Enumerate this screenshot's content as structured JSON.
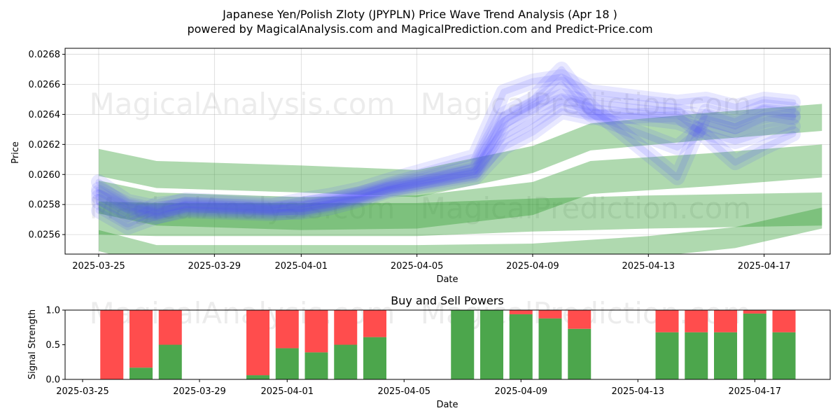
{
  "title_line1": "Japanese Yen/Polish Zloty (JPYPLN) Price Wave Trend Analysis (Apr 18 )",
  "title_line2": "powered by MagicalAnalysis.com and MagicalPrediction.com and Predict-Price.com",
  "watermarks": [
    "MagicalAnalysis.com",
    "MagicalPrediction.com"
  ],
  "chart_data": [
    {
      "type": "area",
      "xlabel": "Date",
      "ylabel": "Price",
      "x_ticks": [
        "2025-03-25",
        "2025-03-29",
        "2025-04-01",
        "2025-04-05",
        "2025-04-09",
        "2025-04-13",
        "2025-04-17"
      ],
      "y_ticks": [
        "0.0256",
        "0.0258",
        "0.0260",
        "0.0262",
        "0.0264",
        "0.0266",
        "0.0268"
      ],
      "ylim": [
        0.02547,
        0.02684
      ],
      "grid": true,
      "colors": {
        "blue_bands": "#4d4dff",
        "green_bands": "#2e9a2e"
      },
      "blue_bands": [
        {
          "x": [
            "2025-03-25",
            "2025-03-26",
            "2025-03-27",
            "2025-03-28",
            "2025-03-31",
            "2025-04-01",
            "2025-04-02",
            "2025-04-03",
            "2025-04-04",
            "2025-04-07",
            "2025-04-08",
            "2025-04-09",
            "2025-04-10",
            "2025-04-11",
            "2025-04-14",
            "2025-04-15",
            "2025-04-16",
            "2025-04-17",
            "2025-04-18"
          ],
          "y": [
            0.02588,
            0.02578,
            0.02574,
            0.02578,
            0.02576,
            0.02577,
            0.02581,
            0.02585,
            0.0259,
            0.02602,
            0.02632,
            0.02645,
            0.02652,
            0.02648,
            0.02642,
            0.02638,
            0.02632,
            0.02641,
            0.02638
          ]
        },
        {
          "x": [
            "2025-03-25",
            "2025-03-26",
            "2025-03-27",
            "2025-03-28",
            "2025-03-31",
            "2025-04-01",
            "2025-04-02",
            "2025-04-03",
            "2025-04-04",
            "2025-04-07",
            "2025-04-08",
            "2025-04-09",
            "2025-04-10",
            "2025-04-11",
            "2025-04-14",
            "2025-04-15",
            "2025-04-16",
            "2025-04-17",
            "2025-04-18"
          ],
          "y": [
            0.02582,
            0.0257,
            0.0258,
            0.02582,
            0.02579,
            0.02583,
            0.02586,
            0.0259,
            0.02596,
            0.02612,
            0.02655,
            0.02662,
            0.02665,
            0.02655,
            0.02648,
            0.0265,
            0.02645,
            0.0265,
            0.02648
          ]
        },
        {
          "x": [
            "2025-03-25",
            "2025-03-26",
            "2025-03-27",
            "2025-03-28",
            "2025-03-31",
            "2025-04-01",
            "2025-04-02",
            "2025-04-03",
            "2025-04-04",
            "2025-04-07",
            "2025-04-08",
            "2025-04-09",
            "2025-04-10",
            "2025-04-11",
            "2025-04-14",
            "2025-04-15",
            "2025-04-16",
            "2025-04-17",
            "2025-04-18"
          ],
          "y": [
            0.02576,
            0.02565,
            0.02572,
            0.02576,
            0.02574,
            0.02576,
            0.0258,
            0.02584,
            0.0259,
            0.026,
            0.02625,
            0.02636,
            0.02648,
            0.02642,
            0.02635,
            0.02628,
            0.02622,
            0.02628,
            0.02632
          ]
        },
        {
          "x": [
            "2025-03-25",
            "2025-03-26",
            "2025-03-27",
            "2025-03-28",
            "2025-03-31",
            "2025-04-01",
            "2025-04-02",
            "2025-04-03",
            "2025-04-04",
            "2025-04-07",
            "2025-04-08",
            "2025-04-09",
            "2025-04-10",
            "2025-04-11",
            "2025-04-14",
            "2025-04-15",
            "2025-04-16",
            "2025-04-17",
            "2025-04-18"
          ],
          "y": [
            0.02595,
            0.02582,
            0.02578,
            0.02583,
            0.0258,
            0.0258,
            0.02583,
            0.02587,
            0.02592,
            0.02605,
            0.0264,
            0.0265,
            0.0267,
            0.02645,
            0.02598,
            0.02642,
            0.02637,
            0.02645,
            0.02643
          ]
        },
        {
          "x": [
            "2025-03-25",
            "2025-03-26",
            "2025-03-27",
            "2025-03-28",
            "2025-03-31",
            "2025-04-01",
            "2025-04-02",
            "2025-04-03",
            "2025-04-04",
            "2025-04-07",
            "2025-04-08",
            "2025-04-09",
            "2025-04-10",
            "2025-04-11",
            "2025-04-14",
            "2025-04-15",
            "2025-04-16",
            "2025-04-17",
            "2025-04-18"
          ],
          "y": [
            0.02585,
            0.02576,
            0.02572,
            0.02577,
            0.02575,
            0.02575,
            0.02578,
            0.02583,
            0.02589,
            0.02598,
            0.02618,
            0.02628,
            0.02642,
            0.02638,
            0.0264,
            0.02625,
            0.02608,
            0.02618,
            0.02627
          ]
        },
        {
          "x": [
            "2025-03-25",
            "2025-03-26",
            "2025-03-27",
            "2025-03-28",
            "2025-03-31",
            "2025-04-01",
            "2025-04-02",
            "2025-04-03",
            "2025-04-04",
            "2025-04-07",
            "2025-04-08",
            "2025-04-09",
            "2025-04-10",
            "2025-04-11",
            "2025-04-14",
            "2025-04-15",
            "2025-04-16",
            "2025-04-17",
            "2025-04-18"
          ],
          "y": [
            0.0259,
            0.0258,
            0.02576,
            0.0258,
            0.02578,
            0.02578,
            0.02582,
            0.02586,
            0.02591,
            0.02603,
            0.02636,
            0.02646,
            0.0266,
            0.0264,
            0.02618,
            0.02634,
            0.02629,
            0.02636,
            0.02639
          ]
        }
      ],
      "green_bands": [
        {
          "x": [
            "2025-03-25",
            "2025-03-27",
            "2025-04-01",
            "2025-04-05",
            "2025-04-09",
            "2025-04-11",
            "2025-04-15",
            "2025-04-19"
          ],
          "y": [
            0.02608,
            0.026,
            0.02597,
            0.02594,
            0.0261,
            0.02625,
            0.02632,
            0.02638
          ],
          "width": 9e-05
        },
        {
          "x": [
            "2025-03-25",
            "2025-03-27",
            "2025-04-01",
            "2025-04-05",
            "2025-04-09",
            "2025-04-11",
            "2025-04-15",
            "2025-04-19"
          ],
          "y": [
            0.02585,
            0.02577,
            0.02574,
            0.02575,
            0.02584,
            0.02598,
            0.02603,
            0.02609
          ],
          "width": 0.00011
        },
        {
          "x": [
            "2025-03-25",
            "2025-03-27",
            "2025-04-01",
            "2025-04-05",
            "2025-04-09",
            "2025-04-13",
            "2025-04-19"
          ],
          "y": [
            0.02571,
            0.0257,
            0.0257,
            0.0257,
            0.02573,
            0.02575,
            0.02577
          ],
          "width": 0.00011
        },
        {
          "x": [
            "2025-03-25",
            "2025-03-27",
            "2025-04-01",
            "2025-04-05",
            "2025-04-09",
            "2025-04-13",
            "2025-04-16",
            "2025-04-19"
          ],
          "y": [
            0.02556,
            0.02546,
            0.02546,
            0.02546,
            0.02547,
            0.02552,
            0.02558,
            0.02571
          ],
          "width": 7e-05
        }
      ]
    },
    {
      "type": "bar",
      "title": "Buy and Sell Powers",
      "xlabel": "Date",
      "ylabel": "Signal Strength",
      "x_ticks": [
        "2025-03-25",
        "2025-03-29",
        "2025-04-01",
        "2025-04-05",
        "2025-04-09",
        "2025-04-13",
        "2025-04-17"
      ],
      "y_ticks": [
        "0.0",
        "0.5",
        "1.0"
      ],
      "ylim": [
        0,
        1
      ],
      "colors": {
        "buy": "#4ca64c",
        "sell": "#ff4d4d"
      },
      "categories": [
        "2025-03-26",
        "2025-03-27",
        "2025-03-28",
        "2025-03-31",
        "2025-04-01",
        "2025-04-02",
        "2025-04-03",
        "2025-04-04",
        "2025-04-07",
        "2025-04-08",
        "2025-04-09",
        "2025-04-10",
        "2025-04-11",
        "2025-04-14",
        "2025-04-15",
        "2025-04-16",
        "2025-04-17",
        "2025-04-18"
      ],
      "series": [
        {
          "name": "",
          "values": [
            0.0,
            0.17,
            0.5,
            0.06,
            0.45,
            0.39,
            0.5,
            0.61,
            1.0,
            1.0,
            0.94,
            0.88,
            0.73,
            0.68,
            0.68,
            0.68,
            0.95,
            0.68
          ]
        },
        {
          "name": "",
          "values": [
            1.0,
            0.83,
            0.5,
            0.94,
            0.55,
            0.61,
            0.5,
            0.39,
            0.0,
            0.0,
            0.06,
            0.12,
            0.27,
            0.32,
            0.32,
            0.32,
            0.05,
            0.32
          ]
        }
      ]
    }
  ]
}
